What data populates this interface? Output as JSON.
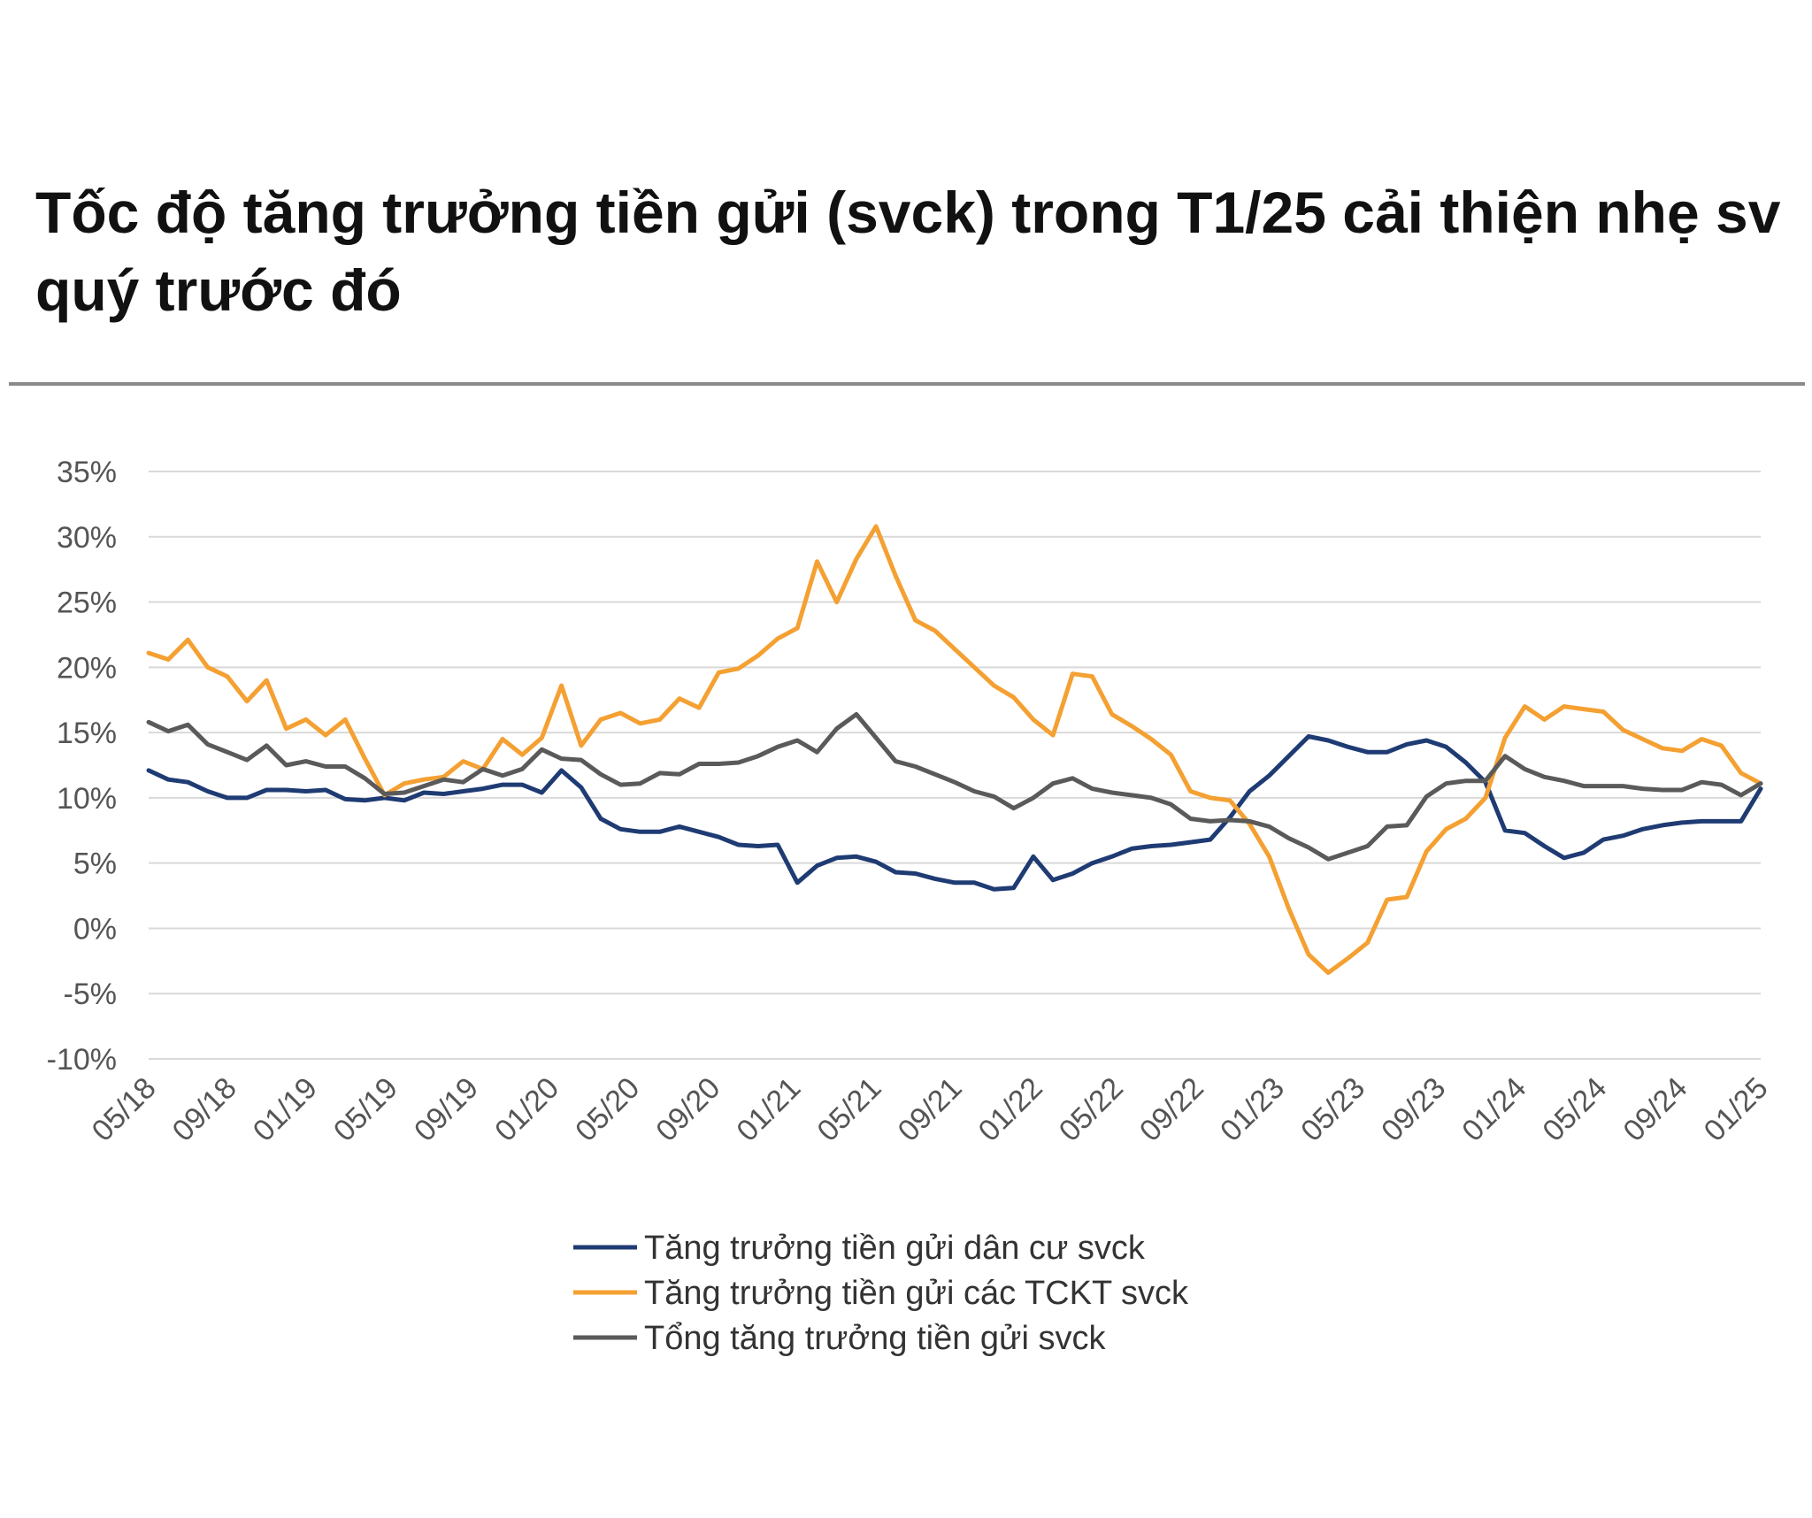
{
  "title": "Tốc độ tăng trưởng tiền gửi (svck) trong T1/25 cải thiện nhẹ sv quý trước đó",
  "colors": {
    "resident": "#1f3b73",
    "tckt": "#f4a032",
    "total": "#5a5a5a",
    "grid": "#d9d9d9",
    "text": "#555555"
  },
  "chart_data": {
    "type": "line",
    "x_ticks": [
      "05/18",
      "09/18",
      "01/19",
      "05/19",
      "09/19",
      "01/20",
      "05/20",
      "09/20",
      "01/21",
      "05/21",
      "09/21",
      "01/22",
      "05/22",
      "09/22",
      "01/23",
      "05/23",
      "09/23",
      "01/24",
      "05/24",
      "09/24",
      "01/25"
    ],
    "y_ticks": [
      "35%",
      "30%",
      "25%",
      "20%",
      "15%",
      "10%",
      "5%",
      "0%",
      "-5%",
      "-10%"
    ],
    "ylim": [
      -10,
      35
    ],
    "y_unit": "%",
    "x_start": "05/18",
    "x_end": "01/25",
    "grid": true,
    "legend_position": "bottom",
    "series": [
      {
        "name": "Tăng trưởng tiền gửi dân cư svck",
        "color": "#1f3b73",
        "values": [
          12.1,
          11.4,
          11.2,
          10.5,
          10.0,
          10.0,
          10.6,
          10.6,
          10.5,
          10.6,
          9.9,
          9.8,
          10.0,
          9.8,
          10.4,
          10.3,
          10.5,
          10.7,
          11.0,
          11.0,
          10.4,
          12.1,
          10.8,
          8.4,
          7.6,
          7.4,
          7.4,
          7.8,
          7.4,
          7.0,
          6.4,
          6.3,
          6.4,
          3.5,
          4.8,
          5.4,
          5.5,
          5.1,
          4.3,
          4.2,
          3.8,
          3.5,
          3.5,
          3.0,
          3.1,
          5.5,
          3.7,
          4.2,
          5.0,
          5.5,
          6.1,
          6.3,
          6.4,
          6.6,
          6.8,
          8.5,
          10.5,
          11.7,
          13.2,
          14.7,
          14.4,
          13.9,
          13.5,
          13.5,
          14.1,
          14.4,
          13.9,
          12.7,
          11.2,
          7.5,
          7.3,
          6.3,
          5.4,
          5.8,
          6.8,
          7.1,
          7.6,
          7.9,
          8.1,
          8.2,
          8.2,
          8.2,
          10.7
        ]
      },
      {
        "name": "Tăng trưởng tiền gửi các TCKT svck",
        "color": "#f4a032",
        "values": [
          21.1,
          20.6,
          22.1,
          20.0,
          19.3,
          17.4,
          19.0,
          15.3,
          16.0,
          14.8,
          16.0,
          13.0,
          10.2,
          11.1,
          11.4,
          11.6,
          12.8,
          12.2,
          14.5,
          13.3,
          14.6,
          18.6,
          14.0,
          16.0,
          16.5,
          15.7,
          16.0,
          17.6,
          16.9,
          19.6,
          19.9,
          20.9,
          22.2,
          23.0,
          28.1,
          25.0,
          28.3,
          30.8,
          27.0,
          23.6,
          22.8,
          21.4,
          20.0,
          18.6,
          17.7,
          16.0,
          14.8,
          19.5,
          19.3,
          16.4,
          15.5,
          14.5,
          13.3,
          10.5,
          10.0,
          9.8,
          8.0,
          5.5,
          1.5,
          -2.0,
          -3.4,
          -2.3,
          -1.1,
          2.2,
          2.4,
          5.9,
          7.6,
          8.4,
          10.0,
          14.6,
          17.0,
          16.0,
          17.0,
          16.8,
          16.6,
          15.2,
          14.5,
          13.8,
          13.6,
          14.5,
          14.0,
          11.9,
          11.1
        ]
      },
      {
        "name": "Tổng tăng trưởng tiền gửi svck",
        "color": "#5a5a5a",
        "values": [
          15.8,
          15.1,
          15.6,
          14.1,
          13.5,
          12.9,
          14.0,
          12.5,
          12.8,
          12.4,
          12.4,
          11.5,
          10.3,
          10.4,
          10.9,
          11.4,
          11.2,
          12.2,
          11.7,
          12.2,
          13.7,
          13.0,
          12.9,
          11.8,
          11.0,
          11.1,
          11.9,
          11.8,
          12.6,
          12.6,
          12.7,
          13.2,
          13.9,
          14.4,
          13.5,
          15.3,
          16.4,
          14.6,
          12.8,
          12.4,
          11.8,
          11.2,
          10.5,
          10.1,
          9.2,
          10.0,
          11.1,
          11.5,
          10.7,
          10.4,
          10.2,
          10.0,
          9.5,
          8.4,
          8.2,
          8.3,
          8.2,
          7.8,
          6.9,
          6.2,
          5.3,
          5.8,
          6.3,
          7.8,
          7.9,
          10.1,
          11.1,
          11.3,
          11.3,
          13.2,
          12.2,
          11.6,
          11.3,
          10.9,
          10.9,
          10.9,
          10.7,
          10.6,
          10.6,
          11.2,
          11.0,
          10.2,
          11.1
        ]
      }
    ]
  }
}
